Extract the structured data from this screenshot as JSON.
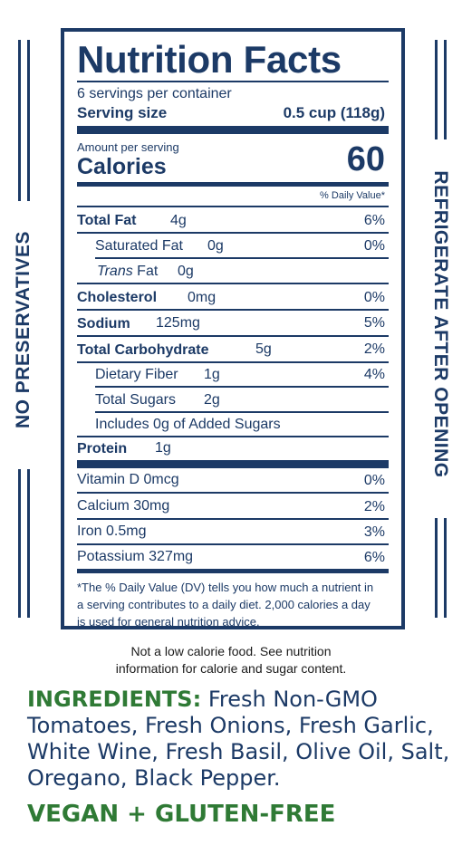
{
  "side": {
    "left_text": "NO PRESERVATIVES",
    "right_text": "REFRIGERATE AFTER OPENING"
  },
  "facts": {
    "title": "Nutrition Facts",
    "servings": "6 servings per container",
    "serving_size_label": "Serving size",
    "serving_size_value": "0.5 cup (118g)",
    "amount_per_serving": "Amount per serving",
    "calories_label": "Calories",
    "calories_value": "60",
    "daily_value_header": "% Daily Value*",
    "rows": [
      {
        "label": "Total Fat",
        "amount": "4g",
        "dv": "6%"
      },
      {
        "label": "Saturated Fat",
        "amount": "0g",
        "dv": "0%"
      },
      {
        "label_italic": "Trans",
        "label": "Fat",
        "amount": "0g",
        "dv": ""
      },
      {
        "label": "Cholesterol",
        "amount": "0mg",
        "dv": "0%"
      },
      {
        "label": "Sodium",
        "amount": "125mg",
        "dv": "5%"
      },
      {
        "label": "Total Carbohydrate",
        "amount": "5g",
        "dv": "2%"
      },
      {
        "label": "Dietary Fiber",
        "amount": "1g",
        "dv": "4%"
      },
      {
        "label": "Total Sugars",
        "amount": "2g",
        "dv": ""
      },
      {
        "label": "Includes 0g of Added Sugars",
        "amount": "",
        "dv": ""
      },
      {
        "label": "Protein",
        "amount": "1g",
        "dv": ""
      }
    ],
    "vitamins": [
      {
        "label": "Vitamin D 0mcg",
        "dv": "0%"
      },
      {
        "label": "Calcium 30mg",
        "dv": "2%"
      },
      {
        "label": "Iron 0.5mg",
        "dv": "3%"
      },
      {
        "label": "Potassium 327mg",
        "dv": "6%"
      }
    ],
    "footnote": "*The % Daily Value (DV) tells you how much a nutrient in a serving contributes to a daily diet. 2,000 calories a day is used for general nutrition advice."
  },
  "note": {
    "line1": "Not a low calorie food. See nutrition",
    "line2": "information for calorie and sugar content."
  },
  "ingredients": {
    "heading": "INGREDIENTS:",
    "text": "Fresh Non-GMO Tomatoes, Fresh Onions, Fresh Garlic, White Wine, Fresh Basil, Olive Oil, Salt, Oregano, Black Pepper."
  },
  "claim": "VEGAN + GLUTEN-FREE",
  "colors": {
    "navy": "#1c3a66",
    "green": "#2f7a35"
  }
}
